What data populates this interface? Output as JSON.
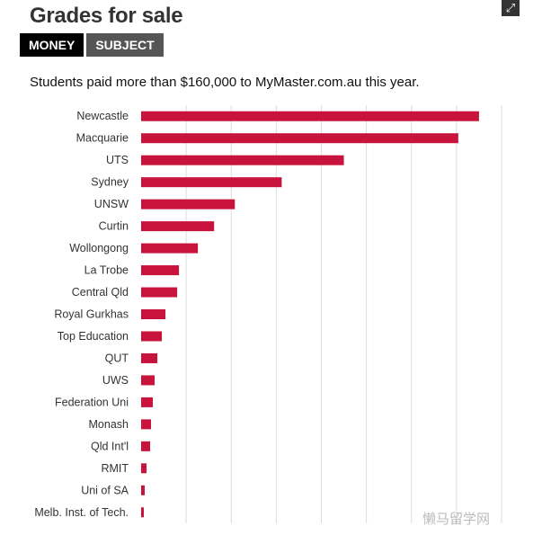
{
  "header": {
    "title": "Grades for sale",
    "expand_icon": "expand-icon",
    "tabs": [
      {
        "label": "MONEY",
        "active": true
      },
      {
        "label": "SUBJECT",
        "active": false
      }
    ],
    "subtitle": "Students paid more than $160,000 to MyMaster.com.au this year."
  },
  "colors": {
    "bar": "#c8143c",
    "grid": "#dddddd"
  },
  "chart_data": {
    "type": "bar",
    "orientation": "horizontal",
    "title": "",
    "xlabel": "",
    "ylabel": "",
    "grid": true,
    "categories": [
      "Newcastle",
      "Macquarie",
      "UTS",
      "Sydney",
      "UNSW",
      "Curtin",
      "Wollongong",
      "La Trobe",
      "Central Qld",
      "Royal Gurkhas",
      "Top Education",
      "QUT",
      "UWS",
      "Federation Uni",
      "Monash",
      "Qld Int'l",
      "RMIT",
      "Uni of SA",
      "Melb. Inst. of Tech."
    ],
    "values": [
      37.5,
      35.2,
      22.5,
      15.6,
      10.4,
      8.1,
      6.3,
      4.2,
      4.0,
      2.7,
      2.3,
      1.8,
      1.5,
      1.3,
      1.1,
      1.0,
      0.6,
      0.4,
      0.3
    ],
    "xlim": [
      0,
      41
    ]
  },
  "watermark": "懒马留学网"
}
